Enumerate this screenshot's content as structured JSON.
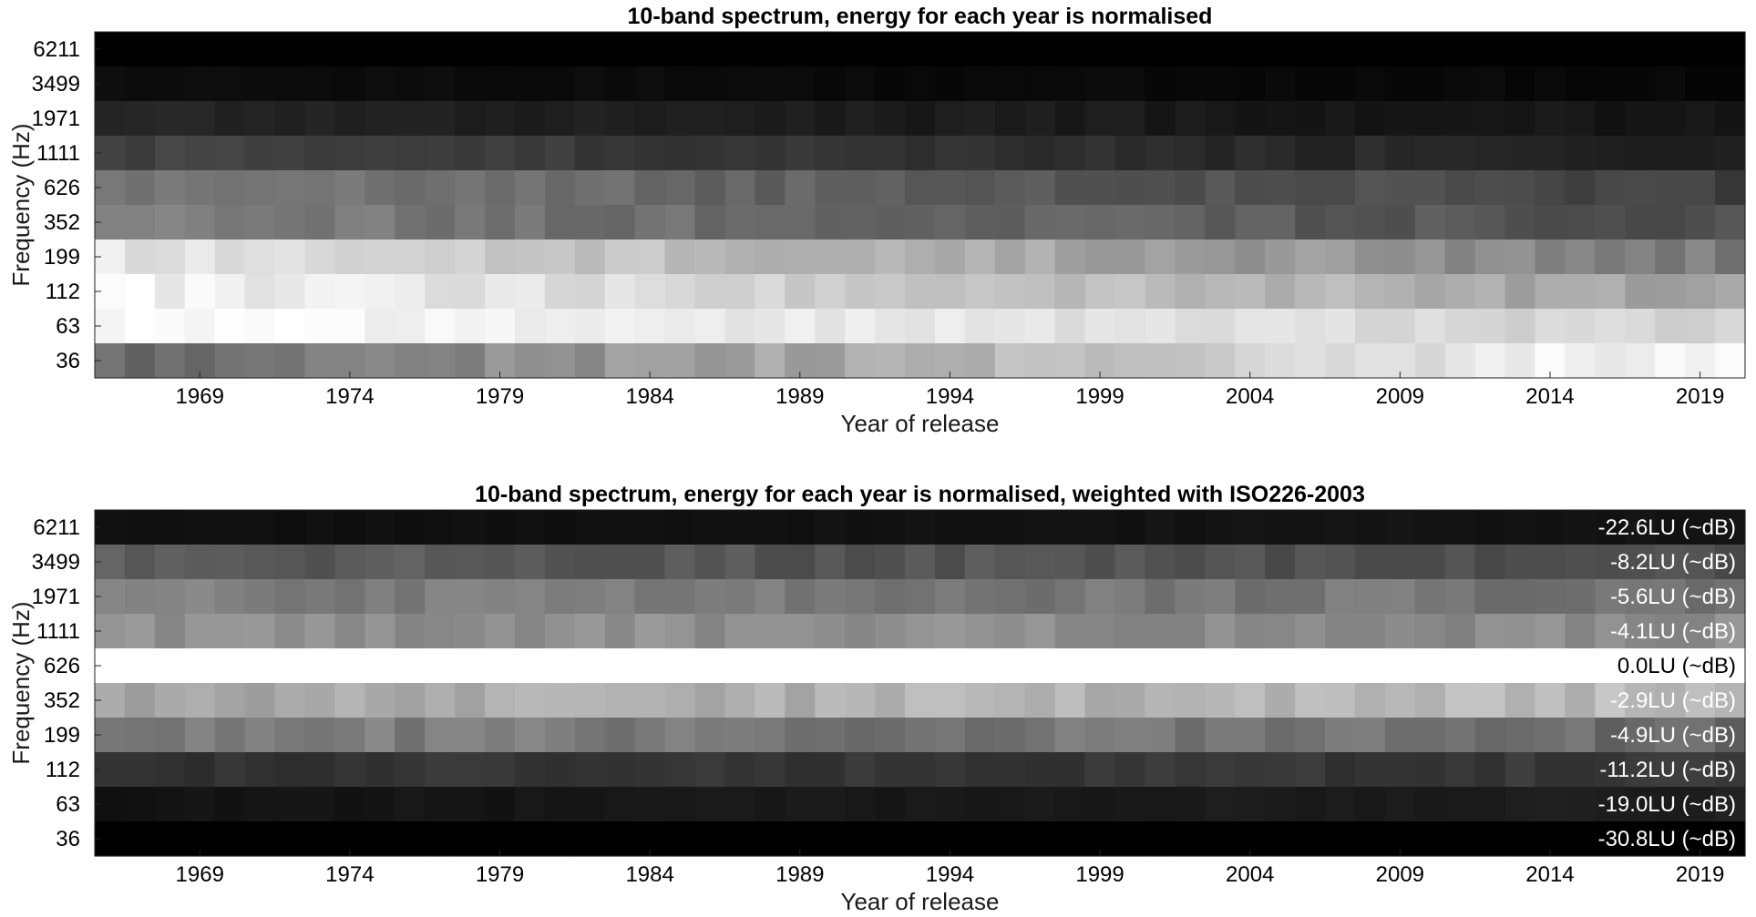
{
  "chart_data": [
    {
      "type": "heatmap",
      "title": "10-band spectrum, energy for each year is normalised",
      "xlabel": "Year of release",
      "ylabel": "Frequency (Hz)",
      "x_tick_labels": [
        "1969",
        "1974",
        "1979",
        "1984",
        "1989",
        "1994",
        "1999",
        "2004",
        "2009",
        "2014",
        "2019"
      ],
      "x_start_year": 1966,
      "x_end_year": 2020,
      "y_categories": [
        "6211",
        "3499",
        "1971",
        "1111",
        "626",
        "352",
        "199",
        "112",
        "63",
        "36"
      ],
      "colormap": "gray",
      "band_intensity_start": [
        0.0,
        0.05,
        0.14,
        0.26,
        0.48,
        0.5,
        0.9,
        0.96,
        0.99,
        0.4
      ],
      "band_intensity_end": [
        0.0,
        0.03,
        0.08,
        0.13,
        0.25,
        0.3,
        0.48,
        0.62,
        0.82,
        1.0
      ],
      "band_cell_variation": [
        0.0,
        0.012,
        0.02,
        0.03,
        0.04,
        0.045,
        0.05,
        0.05,
        0.04,
        0.06
      ],
      "band_labels": []
    },
    {
      "type": "heatmap",
      "title": "10-band spectrum, energy for each year is normalised, weighted with ISO226-2003",
      "xlabel": "Year of release",
      "ylabel": "Frequency (Hz)",
      "x_tick_labels": [
        "1969",
        "1974",
        "1979",
        "1984",
        "1989",
        "1994",
        "1999",
        "2004",
        "2009",
        "2014",
        "2019"
      ],
      "x_start_year": 1966,
      "x_end_year": 2020,
      "y_categories": [
        "6211",
        "3499",
        "1971",
        "1111",
        "626",
        "352",
        "199",
        "112",
        "63",
        "36"
      ],
      "colormap": "gray",
      "band_intensity_start": [
        0.06,
        0.36,
        0.5,
        0.56,
        1.0,
        0.64,
        0.5,
        0.2,
        0.07,
        0.0
      ],
      "band_intensity_end": [
        0.08,
        0.3,
        0.45,
        0.55,
        1.0,
        0.74,
        0.42,
        0.22,
        0.12,
        0.0
      ],
      "band_cell_variation": [
        0.01,
        0.04,
        0.05,
        0.05,
        0.0,
        0.06,
        0.06,
        0.03,
        0.015,
        0.0
      ],
      "band_labels": [
        "-22.6LU (~dB)",
        "-8.2LU (~dB)",
        "-5.6LU (~dB)",
        "-4.1LU (~dB)",
        "0.0LU (~dB)",
        "-2.9LU (~dB)",
        "-4.9LU (~dB)",
        "-11.2LU (~dB)",
        "-19.0LU (~dB)",
        "-30.8LU (~dB)"
      ]
    }
  ]
}
